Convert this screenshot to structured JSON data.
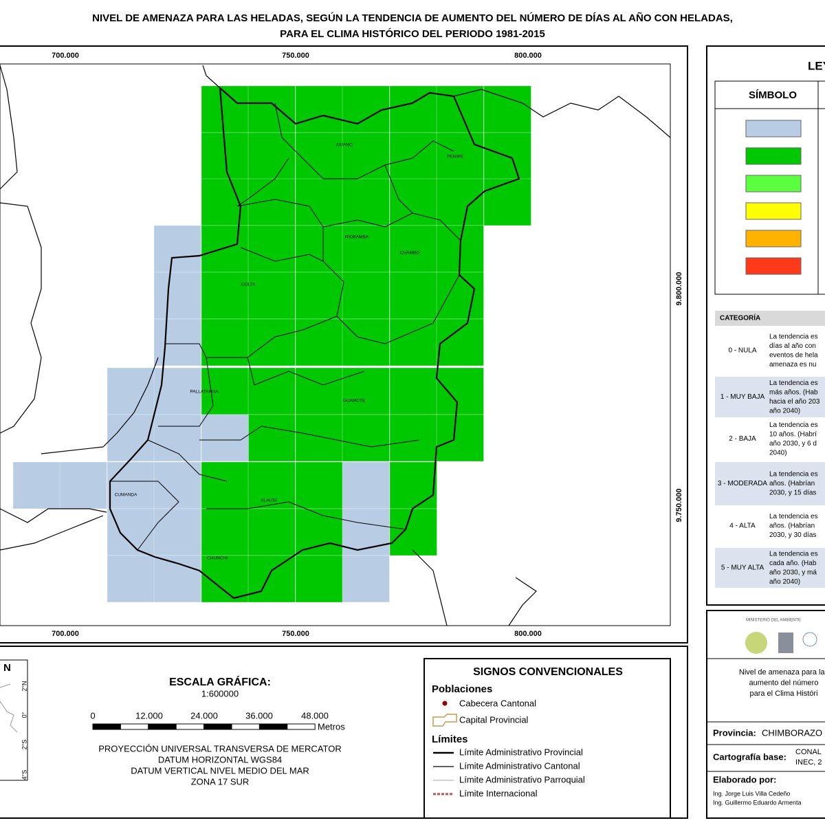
{
  "title": {
    "line1": "NIVEL DE AMENAZA PARA LAS HELADAS, SEGÚN LA TENDENCIA DE AUMENTO DEL NÚMERO DE DÍAS AL AÑO CON HELADAS,",
    "line2": "PARA EL CLIMA HISTÓRICO DEL PERIODO 1981-2015"
  },
  "map": {
    "x_labels_top": [
      "700.000",
      "750.000",
      "800.000"
    ],
    "x_labels_bottom": [
      "700.000",
      "750.000",
      "800.000"
    ],
    "y_labels": [
      "9.800.000",
      "9.750.000"
    ],
    "places": [
      "GUANO",
      "PENIPE",
      "RIOBAMBA",
      "CHAMBO",
      "COLTA",
      "PALLATANGA",
      "GUAMOTE",
      "CUMANDA",
      "ALAUSI",
      "CHUNCHI"
    ]
  },
  "legend": {
    "title": "LEYENDA",
    "symbol_header": "SÍMBOLO",
    "category_header": "CATEGORÍA",
    "symbol_colors": [
      "#b8cce4",
      "#00c800",
      "#5cff40",
      "#ffff00",
      "#ffb300",
      "#ff3a1a"
    ],
    "categories": [
      {
        "name": "0 - NULA",
        "description_lines": [
          "La tendencia es",
          "días al año con",
          "eventos de hela",
          "amenaza es nu"
        ]
      },
      {
        "name": "1 - MUY BAJA",
        "description_lines": [
          "La tendencia es",
          "más años. (Hab",
          "hacia el año 203",
          "año 2040)"
        ]
      },
      {
        "name": "2 - BAJA",
        "description_lines": [
          "La tendencia es",
          "10 años. (Habrí",
          "año 2030, y 6 d",
          "2040)"
        ]
      },
      {
        "name": "3 - MODERADA",
        "description_lines": [
          "La tendencia es",
          "años. (Habrían",
          "2030, y 15 días"
        ]
      },
      {
        "name": "4 - ALTA",
        "description_lines": [
          "La tendencia es",
          "años. (Habrían",
          "2030, y 30 días"
        ]
      },
      {
        "name": "5 - MUY ALTA",
        "description_lines": [
          "La tendencia es",
          "cada año. (Hab",
          "año 2030, y má",
          "año 2040)"
        ]
      }
    ]
  },
  "inset": {
    "north": "N",
    "lat_labels": [
      "2°N",
      "0°",
      "2°S",
      "4°S"
    ]
  },
  "scale": {
    "title": "ESCALA GRÁFICA:",
    "ratio": "1:600000",
    "ticks": [
      "0",
      "12.000",
      "24.000",
      "36.000",
      "48.000"
    ],
    "unit": "Metros",
    "projection_lines": [
      "PROYECCIÓN UNIVERSAL TRANSVERSA DE MERCATOR",
      "DATUM HORIZONTAL WGS84",
      "DATUM VERTICAL NIVEL MEDIO DEL MAR",
      "ZONA 17 SUR"
    ]
  },
  "signs": {
    "title": "SIGNOS CONVENCIONALES",
    "populations_title": "Poblaciones",
    "populations": [
      "Cabecera Cantonal",
      "Capital Provincial"
    ],
    "limits_title": "Límites",
    "limits": [
      "Límite Administrativo Provincial",
      "Límite Administrativo Cantonal",
      "Límite Administrativo Parroquial",
      "Límite Internacional"
    ]
  },
  "info": {
    "ministry": "MINISTERIO DEL AMBIENTE",
    "description_lines": [
      "Nivel de amenaza para las",
      "aumento del número",
      "para el Clima Históri"
    ],
    "province_label": "Provincia:",
    "province": "CHIMBORAZO",
    "base_label": "Cartografía base:",
    "base_lines": [
      "CONAL",
      "INEC, 2"
    ],
    "author_label": "Elaborado por:",
    "authors": [
      "Ing. Jorge Luis Villa Cedeño",
      "Ing. Guillermo Eduardo Armenta"
    ]
  }
}
